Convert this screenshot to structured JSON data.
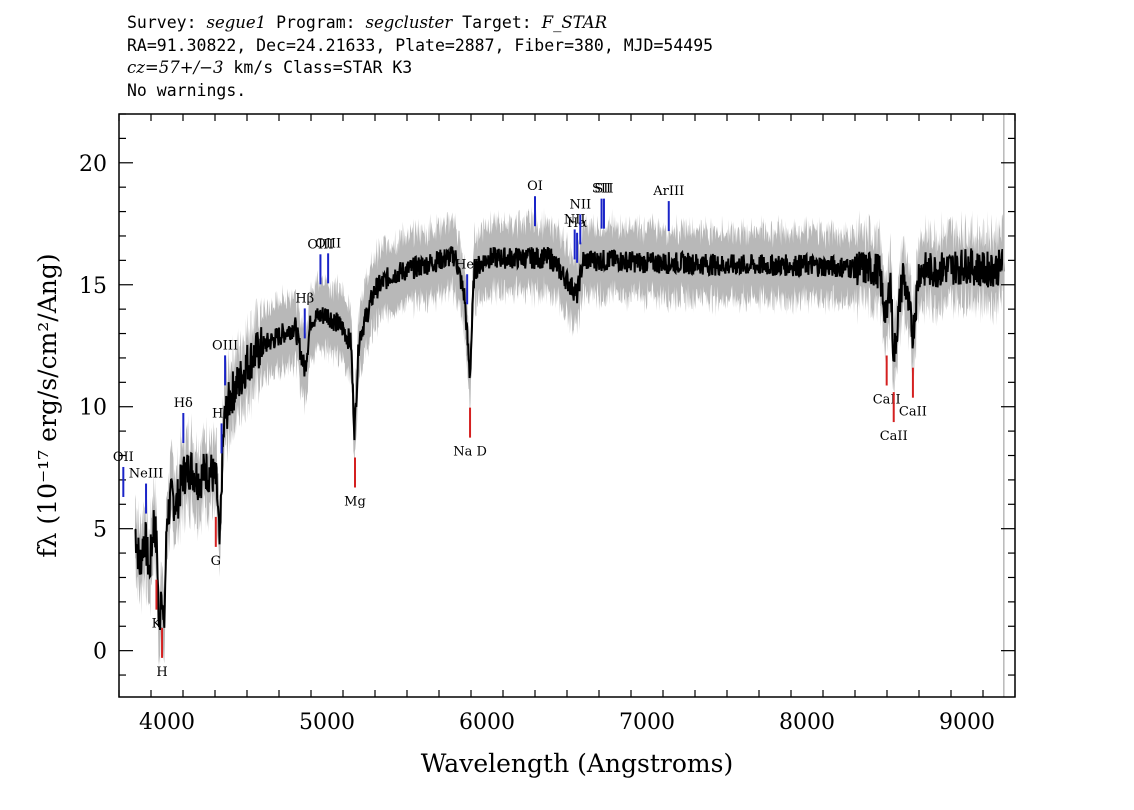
{
  "header": {
    "line1": {
      "survey_key": "Survey: ",
      "survey": "segue1",
      "program_key": " Program: ",
      "program": "segcluster",
      "target_key": " Target: ",
      "target": "F_STAR"
    },
    "line2": "RA=91.30822, Dec=24.21633, Plate=2887, Fiber=380, MJD=54495",
    "line3": {
      "cz": "cz=57+/−3",
      "rest": " km/s Class=STAR K3"
    },
    "line4": "No warnings."
  },
  "chart_data": {
    "type": "line",
    "xlabel": "Wavelength (Angstroms)",
    "ylabel": "fλ (10⁻¹⁷ erg/s/cm²/Ang)",
    "xlim": [
      3700,
      9300
    ],
    "ylim": [
      -1.9,
      22
    ],
    "x_ticks": [
      4000,
      5000,
      6000,
      7000,
      8000,
      9000
    ],
    "y_ticks": [
      0,
      5,
      10,
      15,
      20
    ],
    "series": [
      {
        "color": "#000000",
        "x": [
          3800,
          3830,
          3860,
          3890,
          3920,
          3940,
          3950,
          3965,
          3980,
          4000,
          4030,
          4060,
          4100,
          4150,
          4200,
          4240,
          4280,
          4310,
          4330,
          4345,
          4360,
          4400,
          4450,
          4500,
          4600,
          4700,
          4800,
          4861,
          4900,
          5000,
          5100,
          5150,
          5172,
          5200,
          5250,
          5300,
          5400,
          5500,
          5600,
          5700,
          5800,
          5860,
          5893,
          5920,
          6000,
          6200,
          6400,
          6563,
          6600,
          6800,
          7000,
          7200,
          7500,
          8000,
          8300,
          8450,
          8498,
          8520,
          8542,
          8600,
          8662,
          8700,
          8800,
          9000,
          9100,
          9200,
          9230
        ],
        "y": [
          5.0,
          3.5,
          4.8,
          3.2,
          5.5,
          3.8,
          0.5,
          3.0,
          0.5,
          5.5,
          6.3,
          6.0,
          7.2,
          7.5,
          7.0,
          7.4,
          7.3,
          6.8,
          4.0,
          7.8,
          9.5,
          10.5,
          11.0,
          11.8,
          12.5,
          12.9,
          13.3,
          11.5,
          13.6,
          13.8,
          13.2,
          12.6,
          8.9,
          12.8,
          13.8,
          14.8,
          15.4,
          15.6,
          15.8,
          16.0,
          16.2,
          14.5,
          11.2,
          15.6,
          16.1,
          16.1,
          16.1,
          14.6,
          16.0,
          16.0,
          15.9,
          15.9,
          15.8,
          15.8,
          15.7,
          15.6,
          13.5,
          15.5,
          12.0,
          15.5,
          13.0,
          15.6,
          15.6,
          15.8,
          15.6,
          15.7,
          15.9
        ]
      }
    ],
    "lines": [
      {
        "label": "OII",
        "wave": 3727,
        "kind": "emission"
      },
      {
        "label": "NeIII",
        "wave": 3869,
        "kind": "emission"
      },
      {
        "label": "Hδ",
        "wave": 4102,
        "kind": "emission"
      },
      {
        "label": "Hγ",
        "wave": 4341,
        "kind": "emission"
      },
      {
        "label": "OIII",
        "wave": 4363,
        "kind": "emission"
      },
      {
        "label": "Hβ",
        "wave": 4861,
        "kind": "emission"
      },
      {
        "label": "OIII",
        "wave": 4959,
        "kind": "emission"
      },
      {
        "label": "OIII",
        "wave": 5007,
        "kind": "emission"
      },
      {
        "label": "HeI",
        "wave": 5876,
        "kind": "emission"
      },
      {
        "label": "OI",
        "wave": 6300,
        "kind": "emission"
      },
      {
        "label": "NII",
        "wave": 6548,
        "kind": "emission"
      },
      {
        "label": "Hα",
        "wave": 6563,
        "kind": "emission"
      },
      {
        "label": "NII",
        "wave": 6583,
        "kind": "emission"
      },
      {
        "label": "SII",
        "wave": 6716,
        "kind": "emission"
      },
      {
        "label": "SII",
        "wave": 6731,
        "kind": "emission"
      },
      {
        "label": "ArIII",
        "wave": 7136,
        "kind": "emission"
      },
      {
        "label": "K",
        "wave": 3934,
        "kind": "absorption"
      },
      {
        "label": "H",
        "wave": 3969,
        "kind": "absorption"
      },
      {
        "label": "G",
        "wave": 4305,
        "kind": "absorption"
      },
      {
        "label": "Mg",
        "wave": 5175,
        "kind": "absorption"
      },
      {
        "label": "Na D",
        "wave": 5894,
        "kind": "absorption"
      },
      {
        "label": "CaII",
        "wave": 8498,
        "kind": "absorption"
      },
      {
        "label": "CaII",
        "wave": 8542,
        "kind": "absorption"
      },
      {
        "label": "CaII",
        "wave": 8662,
        "kind": "absorption"
      }
    ],
    "colors": {
      "spectrum": "#000000",
      "error": "#b8b8b8",
      "emission": "#1a24c8",
      "absorption": "#d42020"
    }
  }
}
